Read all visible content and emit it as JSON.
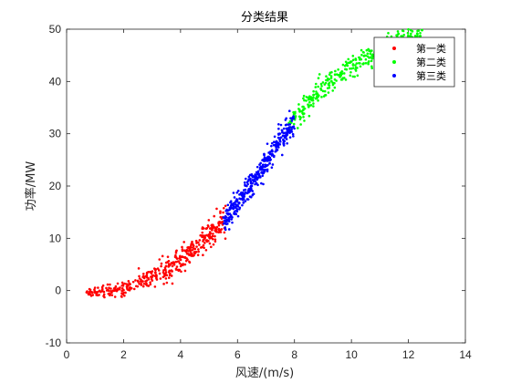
{
  "chart_data": {
    "type": "scatter",
    "title": "分类结果",
    "xlabel": "风速/(m/s)",
    "ylabel": "功率/MW",
    "xlim": [
      0,
      14
    ],
    "ylim": [
      -10,
      50
    ],
    "xticks": [
      "0",
      "2",
      "4",
      "6",
      "8",
      "10",
      "12",
      "14"
    ],
    "yticks": [
      "-10",
      "0",
      "10",
      "20",
      "30",
      "40",
      "50"
    ],
    "legend_position": "top-right",
    "grid": false,
    "series": [
      {
        "name": "第一类",
        "color": "#ff0000",
        "x_range": [
          0.7,
          5.6
        ],
        "values_sample": [
          [
            0.7,
            -0.3
          ],
          [
            1.0,
            -0.2
          ],
          [
            1.5,
            0.0
          ],
          [
            2.0,
            0.6
          ],
          [
            2.5,
            1.5
          ],
          [
            3.0,
            2.6
          ],
          [
            3.5,
            4.0
          ],
          [
            4.0,
            5.8
          ],
          [
            4.5,
            8.0
          ],
          [
            5.0,
            10.8
          ],
          [
            5.5,
            13.0
          ]
        ]
      },
      {
        "name": "第二类",
        "color": "#00ff00",
        "x_range": [
          7.8,
          12.5
        ],
        "values_sample": [
          [
            7.8,
            32.0
          ],
          [
            8.5,
            36.0
          ],
          [
            9.0,
            38.5
          ],
          [
            9.5,
            41.0
          ],
          [
            10.0,
            43.0
          ],
          [
            10.5,
            44.5
          ],
          [
            11.0,
            46.0
          ],
          [
            11.5,
            47.0
          ],
          [
            12.0,
            48.0
          ],
          [
            12.5,
            48.5
          ]
        ]
      },
      {
        "name": "第三类",
        "color": "#0000ff",
        "x_range": [
          5.5,
          8.0
        ],
        "values_sample": [
          [
            5.5,
            13.0
          ],
          [
            6.0,
            16.5
          ],
          [
            6.5,
            20.5
          ],
          [
            7.0,
            24.5
          ],
          [
            7.5,
            28.5
          ],
          [
            8.0,
            32.0
          ]
        ]
      }
    ]
  }
}
